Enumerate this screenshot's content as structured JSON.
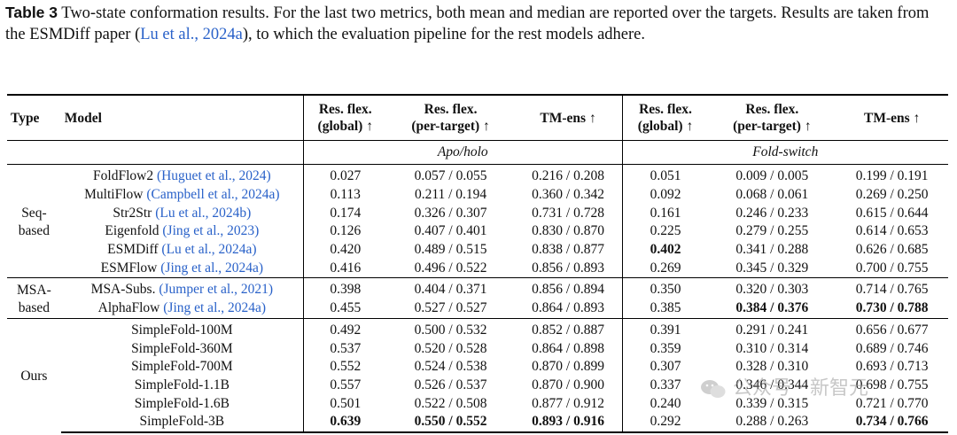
{
  "caption": {
    "label": "Table 3",
    "text_part1": " Two-state conformation results. For the last two metrics, both mean and median are reported over the targets. Results are taken from the ESMDiff paper (",
    "cite_author": "Lu et al., ",
    "cite_year": "2024a",
    "text_part2": "), to which the evaluation pipeline for the rest models adhere."
  },
  "table": {
    "headers": {
      "type": "Type",
      "model": "Model",
      "res_global": [
        "Res. flex.",
        "(global) ↑"
      ],
      "res_target": [
        "Res. flex.",
        "(per-target) ↑"
      ],
      "tm": "TM-ens ↑"
    },
    "groups": [
      "Apo/holo",
      "Fold-switch"
    ],
    "sections": [
      {
        "type": [
          "Seq-",
          "based"
        ],
        "rows": [
          {
            "model": "FoldFlow2 ",
            "cite": "(Huguet et al., 2024)",
            "cells": [
              "0.027",
              "0.057 / 0.055",
              "0.216 / 0.208",
              "0.051",
              "0.009 / 0.005",
              "0.199 / 0.191"
            ]
          },
          {
            "model": "MultiFlow ",
            "cite": "(Campbell et al., 2024a)",
            "cells": [
              "0.113",
              "0.211 / 0.194",
              "0.360 / 0.342",
              "0.092",
              "0.068 / 0.061",
              "0.269 / 0.250"
            ]
          },
          {
            "model": "Str2Str ",
            "cite": "(Lu et al., 2024b)",
            "cells": [
              "0.174",
              "0.326 / 0.307",
              "0.731 / 0.728",
              "0.161",
              "0.246 / 0.233",
              "0.615 / 0.644"
            ]
          },
          {
            "model": "Eigenfold ",
            "cite": "(Jing et al., 2023)",
            "cells": [
              "0.126",
              "0.407 / 0.401",
              "0.830 / 0.870",
              "0.225",
              "0.279 / 0.255",
              "0.614 / 0.653"
            ]
          },
          {
            "model": "ESMDiff ",
            "cite": "(Lu et al., 2024a)",
            "cells": [
              "0.420",
              "0.489 / 0.515",
              "0.838 / 0.877",
              "0.402",
              "0.341 / 0.288",
              "0.626 / 0.685"
            ]
          },
          {
            "model": "ESMFlow ",
            "cite": "(Jing et al., 2024a)",
            "cells": [
              "0.416",
              "0.496 / 0.522",
              "0.856 / 0.893",
              "0.269",
              "0.345 / 0.329",
              "0.700 / 0.755"
            ]
          }
        ]
      },
      {
        "type": [
          "MSA-",
          "based"
        ],
        "rows": [
          {
            "model": "MSA-Subs. ",
            "cite": "(Jumper et al., 2021)",
            "cells": [
              "0.398",
              "0.404 / 0.371",
              "0.856 / 0.894",
              "0.350",
              "0.320 / 0.303",
              "0.714 / 0.765"
            ]
          },
          {
            "model": "AlphaFlow ",
            "cite": "(Jing et al., 2024a)",
            "cells": [
              "0.455",
              "0.527 / 0.527",
              "0.864 / 0.893",
              "0.385",
              "0.384 / 0.376",
              "0.730 / 0.788"
            ]
          }
        ]
      },
      {
        "type": [
          "Ours"
        ],
        "rows": [
          {
            "model": "SimpleFold-100M",
            "cite": "",
            "cells": [
              "0.492",
              "0.500 / 0.532",
              "0.852 / 0.887",
              "0.391",
              "0.291 / 0.241",
              "0.656 / 0.677"
            ]
          },
          {
            "model": "SimpleFold-360M",
            "cite": "",
            "cells": [
              "0.537",
              "0.520 / 0.528",
              "0.864 / 0.898",
              "0.359",
              "0.310 / 0.314",
              "0.689 / 0.746"
            ]
          },
          {
            "model": "SimpleFold-700M",
            "cite": "",
            "cells": [
              "0.552",
              "0.524 / 0.538",
              "0.870 / 0.899",
              "0.307",
              "0.328 / 0.310",
              "0.693 / 0.713"
            ]
          },
          {
            "model": "SimpleFold-1.1B",
            "cite": "",
            "cells": [
              "0.557",
              "0.526 / 0.537",
              "0.870 / 0.900",
              "0.337",
              "0.346 / 0.344",
              "0.698 / 0.755"
            ]
          },
          {
            "model": "SimpleFold-1.6B",
            "cite": "",
            "cells": [
              "0.501",
              "0.522 / 0.508",
              "0.877 / 0.912",
              "0.240",
              "0.339 / 0.315",
              "0.721 / 0.770"
            ]
          },
          {
            "model": "SimpleFold-3B",
            "cite": "",
            "cells": [
              "0.639",
              "0.550 / 0.552",
              "0.893 / 0.916",
              "0.292",
              "0.288 / 0.263",
              "0.734 / 0.766"
            ]
          }
        ]
      }
    ],
    "bold_cells": [
      [
        0,
        4,
        3
      ],
      [
        1,
        1,
        4
      ],
      [
        1,
        1,
        5
      ],
      [
        2,
        5,
        0
      ],
      [
        2,
        5,
        1
      ],
      [
        2,
        5,
        2
      ],
      [
        2,
        5,
        5
      ]
    ]
  },
  "watermark": {
    "icon": "wechat-icon",
    "text": "公众号 · 新智元"
  },
  "colors": {
    "citation": "#2a62c9"
  }
}
